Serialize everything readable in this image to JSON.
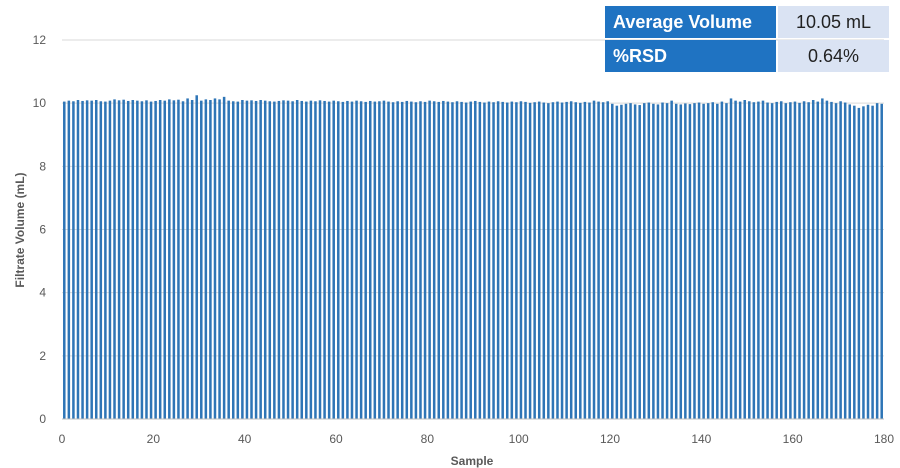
{
  "chart_data": {
    "type": "bar",
    "xlabel": "Sample",
    "ylabel": "Filtrate Volume (mL)",
    "ylim": [
      0,
      12
    ],
    "xlim": [
      0,
      180
    ],
    "yticks": [
      0,
      2,
      4,
      6,
      8,
      10,
      12
    ],
    "xticks": [
      0,
      20,
      40,
      60,
      80,
      100,
      120,
      140,
      160,
      180
    ],
    "grid": true,
    "bar_color": "#2e75b6",
    "x": [
      1,
      2,
      3,
      4,
      5,
      6,
      7,
      8,
      9,
      10,
      11,
      12,
      13,
      14,
      15,
      16,
      17,
      18,
      19,
      20,
      21,
      22,
      23,
      24,
      25,
      26,
      27,
      28,
      29,
      30,
      31,
      32,
      33,
      34,
      35,
      36,
      37,
      38,
      39,
      40,
      41,
      42,
      43,
      44,
      45,
      46,
      47,
      48,
      49,
      50,
      51,
      52,
      53,
      54,
      55,
      56,
      57,
      58,
      59,
      60,
      61,
      62,
      63,
      64,
      65,
      66,
      67,
      68,
      69,
      70,
      71,
      72,
      73,
      74,
      75,
      76,
      77,
      78,
      79,
      80,
      81,
      82,
      83,
      84,
      85,
      86,
      87,
      88,
      89,
      90,
      91,
      92,
      93,
      94,
      95,
      96,
      97,
      98,
      99,
      100,
      101,
      102,
      103,
      104,
      105,
      106,
      107,
      108,
      109,
      110,
      111,
      112,
      113,
      114,
      115,
      116,
      117,
      118,
      119,
      120,
      121,
      122,
      123,
      124,
      125,
      126,
      127,
      128,
      129,
      130,
      131,
      132,
      133,
      134,
      135,
      136,
      137,
      138,
      139,
      140,
      141,
      142,
      143,
      144,
      145,
      146,
      147,
      148,
      149,
      150,
      151,
      152,
      153,
      154,
      155,
      156,
      157,
      158,
      159,
      160,
      161,
      162,
      163,
      164,
      165,
      166,
      167,
      168,
      169,
      170,
      171,
      172,
      173,
      174,
      175,
      176,
      177,
      178,
      179,
      180
    ],
    "values": [
      10.05,
      10.08,
      10.06,
      10.1,
      10.07,
      10.09,
      10.08,
      10.1,
      10.06,
      10.05,
      10.08,
      10.12,
      10.09,
      10.11,
      10.07,
      10.1,
      10.08,
      10.06,
      10.09,
      10.05,
      10.07,
      10.1,
      10.08,
      10.12,
      10.09,
      10.11,
      10.06,
      10.15,
      10.1,
      10.25,
      10.08,
      10.12,
      10.1,
      10.15,
      10.12,
      10.2,
      10.08,
      10.06,
      10.05,
      10.1,
      10.08,
      10.09,
      10.07,
      10.1,
      10.08,
      10.06,
      10.05,
      10.07,
      10.09,
      10.08,
      10.06,
      10.1,
      10.07,
      10.05,
      10.08,
      10.06,
      10.09,
      10.07,
      10.05,
      10.08,
      10.06,
      10.04,
      10.07,
      10.05,
      10.08,
      10.06,
      10.04,
      10.07,
      10.05,
      10.06,
      10.08,
      10.05,
      10.03,
      10.06,
      10.04,
      10.07,
      10.05,
      10.03,
      10.06,
      10.04,
      10.08,
      10.06,
      10.04,
      10.07,
      10.05,
      10.03,
      10.06,
      10.04,
      10.02,
      10.05,
      10.07,
      10.04,
      10.02,
      10.05,
      10.03,
      10.06,
      10.04,
      10.02,
      10.05,
      10.03,
      10.06,
      10.04,
      10.01,
      10.03,
      10.05,
      10.02,
      10.0,
      10.03,
      10.05,
      10.02,
      10.04,
      10.06,
      10.03,
      10.01,
      10.04,
      10.02,
      10.08,
      10.05,
      10.03,
      10.06,
      9.98,
      9.92,
      9.95,
      9.98,
      10.0,
      9.96,
      9.94,
      10.0,
      10.02,
      9.98,
      9.96,
      10.02,
      10.0,
      10.08,
      9.98,
      9.96,
      9.99,
      9.97,
      10.0,
      10.02,
      9.98,
      10.0,
      10.03,
      9.98,
      10.05,
      10.0,
      10.15,
      10.08,
      10.05,
      10.1,
      10.06,
      10.03,
      10.05,
      10.08,
      10.02,
      10.0,
      10.04,
      10.06,
      10.0,
      10.03,
      10.05,
      10.01,
      10.06,
      10.03,
      10.1,
      10.05,
      10.15,
      10.08,
      10.04,
      10.0,
      10.06,
      10.02,
      9.96,
      9.92,
      9.85,
      9.9,
      9.95,
      9.92,
      10.0,
      9.98
    ]
  },
  "stats": {
    "average_label": "Average Volume",
    "average_value": "10.05 mL",
    "rsd_label": "%RSD",
    "rsd_value": "0.64%"
  }
}
